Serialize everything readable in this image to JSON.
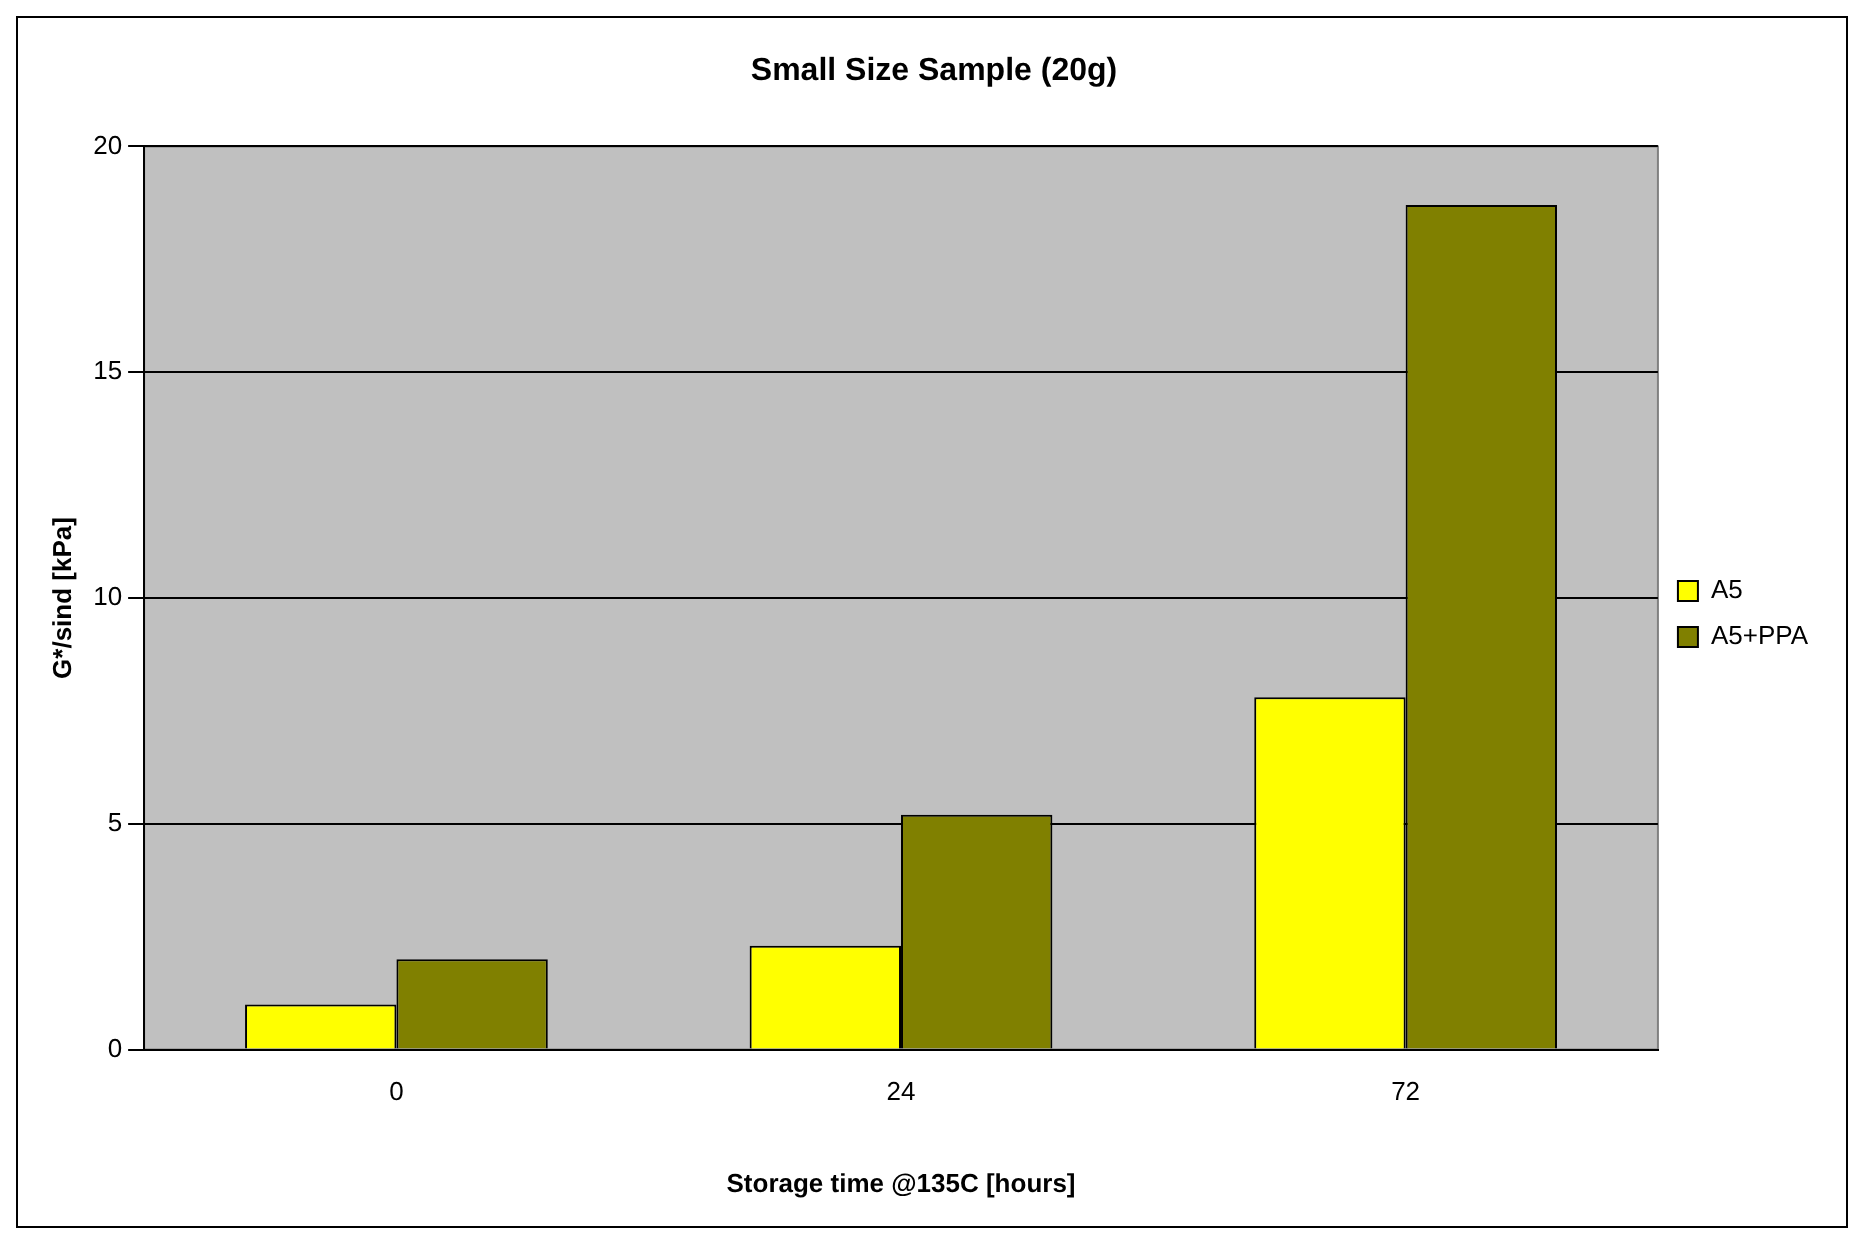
{
  "chart_data": {
    "type": "bar",
    "title": "Small Size Sample (20g)",
    "xlabel": "Storage time @135C [hours]",
    "ylabel": "G*/sind [kPa]",
    "categories": [
      "0",
      "24",
      "72"
    ],
    "series": [
      {
        "name": "A5",
        "color": "#ffff00",
        "values": [
          1.0,
          2.3,
          7.8
        ]
      },
      {
        "name": "A5+PPA",
        "color": "#808000",
        "values": [
          2.0,
          5.2,
          18.7
        ]
      }
    ],
    "ylim": [
      0,
      20
    ],
    "yticks": [
      0,
      5,
      10,
      15,
      20
    ],
    "grid": "y",
    "legend": "right"
  }
}
